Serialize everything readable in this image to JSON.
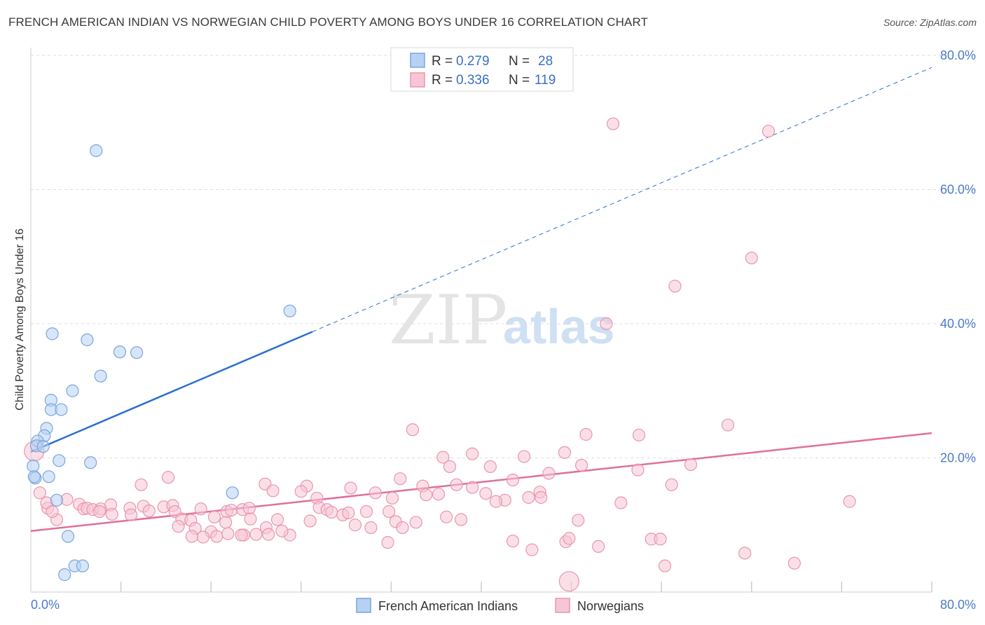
{
  "title": "FRENCH AMERICAN INDIAN VS NORWEGIAN CHILD POVERTY AMONG BOYS UNDER 16 CORRELATION CHART",
  "source": "Source: ZipAtlas.com",
  "watermark": {
    "zip": "ZIP",
    "atlas": "atlas"
  },
  "colors": {
    "blue_fill": "#b7d1f2",
    "blue_stroke": "#7aa5dd",
    "blue_line": "#2a6fcf",
    "pink_fill": "#f8c5d4",
    "pink_stroke": "#e896b0",
    "pink_line": "#e0709a",
    "axis_text": "#4a7cc7",
    "grid": "#dddddd"
  },
  "legend": {
    "rows": [
      {
        "r_label": "R = ",
        "r_value": "0.279",
        "n_label": "N = ",
        "n_value": "28",
        "color": "blue"
      },
      {
        "r_label": "R = ",
        "r_value": "0.336",
        "n_label": "N = ",
        "n_value": "119",
        "color": "pink"
      }
    ]
  },
  "bottom_legend": [
    "French American Indians",
    "Norwegians"
  ],
  "chart_data": {
    "type": "scatter",
    "title": "FRENCH AMERICAN INDIAN VS NORWEGIAN CHILD POVERTY AMONG BOYS UNDER 16 CORRELATION CHART",
    "xlabel": "",
    "ylabel": "Child Poverty Among Boys Under 16",
    "xlim": [
      0,
      80
    ],
    "ylim": [
      0,
      80
    ],
    "x_tick_labels": [
      "0.0%",
      "80.0%"
    ],
    "y_tick_labels": [
      "20.0%",
      "40.0%",
      "60.0%",
      "80.0%"
    ],
    "y_ticks": [
      20,
      40,
      60,
      80
    ],
    "grid": true,
    "legend_position": "top-center",
    "series": [
      {
        "name": "French American Indians",
        "color": "blue",
        "r": 0.279,
        "n": 28,
        "trend": {
          "x0": 0,
          "y0": 20.9,
          "x1": 25,
          "y1": 38.8,
          "dashed_to_x": 80,
          "dashed_to_y": 78.2
        },
        "points": [
          [
            5.8,
            65.8
          ],
          [
            1.9,
            38.5
          ],
          [
            5.0,
            37.6
          ],
          [
            7.9,
            35.8
          ],
          [
            9.4,
            35.7
          ],
          [
            23.0,
            41.9
          ],
          [
            6.2,
            32.2
          ],
          [
            3.7,
            30.0
          ],
          [
            1.8,
            28.6
          ],
          [
            1.8,
            27.2
          ],
          [
            2.7,
            27.2
          ],
          [
            1.4,
            24.4
          ],
          [
            1.2,
            23.3
          ],
          [
            0.6,
            22.5
          ],
          [
            0.5,
            21.8
          ],
          [
            1.1,
            21.7
          ],
          [
            2.5,
            19.6
          ],
          [
            5.3,
            19.3
          ],
          [
            0.2,
            18.8
          ],
          [
            1.6,
            17.2
          ],
          [
            0.4,
            17.0
          ],
          [
            0.3,
            17.2
          ],
          [
            17.9,
            14.8
          ],
          [
            2.3,
            13.7
          ],
          [
            3.3,
            8.3
          ],
          [
            3.9,
            3.9
          ],
          [
            4.6,
            3.9
          ],
          [
            3.0,
            2.6
          ]
        ]
      },
      {
        "name": "Norwegians",
        "color": "pink",
        "r": 0.336,
        "n": 119,
        "trend": {
          "x0": 0,
          "y0": 9.1,
          "x1": 80,
          "y1": 23.7
        },
        "points": [
          [
            51.7,
            69.8
          ],
          [
            65.5,
            68.7
          ],
          [
            64.0,
            49.8
          ],
          [
            57.2,
            45.6
          ],
          [
            51.1,
            40.0
          ],
          [
            61.9,
            24.9
          ],
          [
            33.9,
            24.2
          ],
          [
            49.3,
            23.5
          ],
          [
            54.0,
            23.4
          ],
          [
            39.2,
            20.6
          ],
          [
            36.6,
            20.1
          ],
          [
            43.8,
            20.2
          ],
          [
            47.4,
            20.8
          ],
          [
            58.6,
            19.0
          ],
          [
            48.9,
            18.9
          ],
          [
            37.2,
            18.7
          ],
          [
            40.8,
            18.7
          ],
          [
            53.9,
            18.2
          ],
          [
            46.0,
            17.7
          ],
          [
            42.8,
            16.7
          ],
          [
            32.8,
            16.9
          ],
          [
            56.9,
            16.0
          ],
          [
            9.8,
            16.0
          ],
          [
            20.8,
            16.1
          ],
          [
            24.5,
            15.8
          ],
          [
            28.4,
            15.5
          ],
          [
            37.8,
            16.0
          ],
          [
            39.2,
            15.6
          ],
          [
            34.8,
            15.8
          ],
          [
            21.5,
            15.1
          ],
          [
            24.0,
            15.0
          ],
          [
            30.6,
            14.8
          ],
          [
            36.2,
            14.6
          ],
          [
            40.4,
            14.7
          ],
          [
            44.2,
            14.1
          ],
          [
            45.2,
            14.9
          ],
          [
            35.1,
            14.5
          ],
          [
            42.1,
            13.7
          ],
          [
            25.4,
            14.0
          ],
          [
            12.2,
            17.1
          ],
          [
            32.1,
            14.0
          ],
          [
            41.3,
            13.5
          ],
          [
            45.3,
            14.1
          ],
          [
            52.4,
            13.3
          ],
          [
            72.7,
            13.5
          ],
          [
            3.2,
            13.8
          ],
          [
            4.3,
            13.1
          ],
          [
            4.7,
            12.4
          ],
          [
            5.0,
            12.5
          ],
          [
            5.5,
            12.3
          ],
          [
            6.2,
            12.4
          ],
          [
            7.1,
            13.0
          ],
          [
            8.8,
            12.5
          ],
          [
            10.0,
            12.8
          ],
          [
            11.8,
            12.7
          ],
          [
            12.6,
            12.9
          ],
          [
            15.1,
            12.4
          ],
          [
            17.4,
            12.0
          ],
          [
            17.8,
            12.2
          ],
          [
            18.8,
            12.3
          ],
          [
            19.4,
            12.5
          ],
          [
            25.6,
            12.6
          ],
          [
            26.3,
            12.3
          ],
          [
            26.7,
            11.9
          ],
          [
            27.7,
            11.5
          ],
          [
            28.2,
            11.8
          ],
          [
            29.8,
            12.0
          ],
          [
            31.8,
            12.0
          ],
          [
            6.1,
            12.0
          ],
          [
            7.2,
            11.6
          ],
          [
            8.9,
            11.5
          ],
          [
            1.5,
            12.5
          ],
          [
            2.3,
            10.8
          ],
          [
            10.5,
            12.1
          ],
          [
            12.8,
            12.0
          ],
          [
            13.4,
            10.9
          ],
          [
            14.2,
            10.7
          ],
          [
            16.3,
            11.2
          ],
          [
            17.3,
            10.4
          ],
          [
            19.5,
            10.9
          ],
          [
            21.9,
            10.8
          ],
          [
            24.8,
            10.6
          ],
          [
            32.4,
            10.5
          ],
          [
            36.9,
            11.2
          ],
          [
            28.8,
            10.0
          ],
          [
            34.2,
            10.4
          ],
          [
            38.2,
            10.8
          ],
          [
            48.6,
            10.7
          ],
          [
            14.6,
            9.5
          ],
          [
            16.0,
            9.0
          ],
          [
            13.1,
            9.8
          ],
          [
            17.5,
            8.7
          ],
          [
            18.9,
            8.5
          ],
          [
            20.0,
            8.6
          ],
          [
            23.0,
            8.5
          ],
          [
            20.9,
            9.6
          ],
          [
            22.3,
            9.1
          ],
          [
            30.2,
            9.6
          ],
          [
            33.0,
            9.6
          ],
          [
            16.5,
            8.3
          ],
          [
            15.3,
            8.2
          ],
          [
            14.3,
            8.3
          ],
          [
            21.1,
            8.6
          ],
          [
            18.7,
            8.5
          ],
          [
            31.7,
            7.4
          ],
          [
            42.8,
            7.6
          ],
          [
            47.5,
            7.5
          ],
          [
            47.8,
            8.0
          ],
          [
            55.1,
            7.9
          ],
          [
            55.9,
            7.9
          ],
          [
            56.3,
            3.9
          ],
          [
            44.5,
            6.3
          ],
          [
            50.4,
            6.8
          ],
          [
            63.4,
            5.8
          ],
          [
            67.8,
            4.3
          ],
          [
            47.8,
            1.6
          ],
          [
            0.3,
            21.0
          ],
          [
            0.8,
            14.8
          ],
          [
            1.4,
            13.3
          ],
          [
            1.9,
            12.0
          ]
        ]
      }
    ]
  }
}
